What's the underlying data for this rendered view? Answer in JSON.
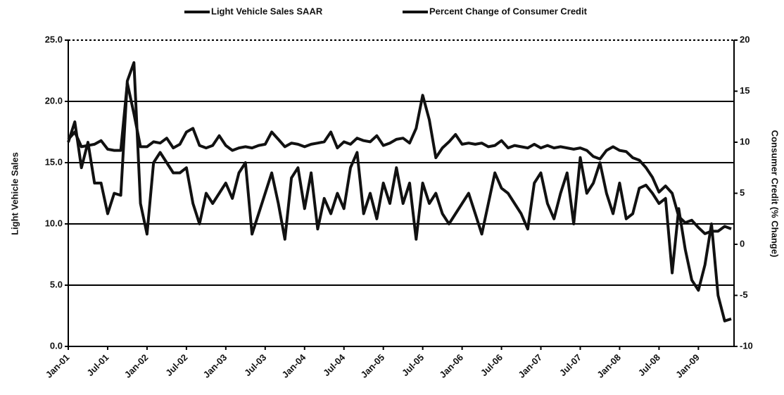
{
  "chart_data": {
    "type": "line",
    "y_label": "Light Vehicle Sales",
    "y2_label": "Consumer Credit (% Change)",
    "categories": [
      "Jan-01",
      null,
      null,
      null,
      null,
      null,
      "Jul-01",
      null,
      null,
      null,
      null,
      null,
      "Jan-02",
      null,
      null,
      null,
      null,
      null,
      "Jul-02",
      null,
      null,
      null,
      null,
      null,
      "Jan-03",
      null,
      null,
      null,
      null,
      null,
      "Jul-03",
      null,
      null,
      null,
      null,
      null,
      "Jan-04",
      null,
      null,
      null,
      null,
      null,
      "Jul-04",
      null,
      null,
      null,
      null,
      null,
      "Jan-05",
      null,
      null,
      null,
      null,
      null,
      "Jul-05",
      null,
      null,
      null,
      null,
      null,
      "Jan-06",
      null,
      null,
      null,
      null,
      null,
      "Jul-06",
      null,
      null,
      null,
      null,
      null,
      "Jan-07",
      null,
      null,
      null,
      null,
      null,
      "Jul-07",
      null,
      null,
      null,
      null,
      null,
      "Jan-08",
      null,
      null,
      null,
      null,
      null,
      "Jul-08",
      null,
      null,
      null,
      null,
      null,
      "Jan-09",
      null,
      null,
      null,
      null,
      null
    ],
    "series": [
      {
        "name": "Light Vehicle Sales SAAR",
        "color": "#111111",
        "values": [
          16.9,
          17.5,
          16.3,
          16.4,
          16.5,
          16.8,
          16.1,
          16.0,
          16.0,
          21.5,
          19.0,
          16.3,
          16.3,
          16.7,
          16.6,
          17.0,
          16.2,
          16.5,
          17.5,
          17.8,
          16.4,
          16.2,
          16.4,
          17.2,
          16.4,
          16.0,
          16.2,
          16.3,
          16.2,
          16.4,
          16.5,
          17.5,
          16.9,
          16.3,
          16.6,
          16.5,
          16.3,
          16.5,
          16.6,
          16.7,
          17.5,
          16.2,
          16.7,
          16.5,
          17.0,
          16.8,
          16.7,
          17.2,
          16.4,
          16.6,
          16.9,
          17.0,
          16.6,
          17.8,
          20.5,
          18.5,
          15.4,
          16.2,
          16.7,
          17.3,
          16.5,
          16.6,
          16.5,
          16.6,
          16.3,
          16.4,
          16.8,
          16.2,
          16.4,
          16.3,
          16.2,
          16.5,
          16.2,
          16.4,
          16.2,
          16.3,
          16.2,
          16.1,
          16.2,
          16.0,
          15.5,
          15.3,
          16.0,
          16.3,
          16.0,
          15.9,
          15.4,
          15.2,
          14.6,
          13.8,
          12.6,
          13.1,
          12.5,
          10.6,
          10.1,
          10.3,
          9.7,
          9.2,
          9.4,
          9.4,
          9.8,
          9.6
        ]
      },
      {
        "name": "Percent Change of Consumer Credit",
        "color": "#111111",
        "axis": "y2",
        "values": [
          10,
          12,
          7.5,
          10,
          6,
          6,
          3,
          5,
          4.8,
          16,
          17.8,
          4,
          1,
          8,
          9,
          8,
          7,
          7,
          7.5,
          4,
          2,
          5,
          4,
          5,
          6,
          4.5,
          7,
          8,
          1,
          3,
          5,
          7,
          4,
          0.5,
          6.5,
          7.5,
          3.5,
          7,
          1.5,
          4.5,
          3,
          5,
          3.5,
          7.5,
          9,
          3,
          5,
          2.5,
          6,
          4,
          7.5,
          4,
          6,
          0.5,
          6,
          4,
          5,
          3,
          2,
          3,
          4,
          5,
          3,
          1,
          4,
          7,
          5.5,
          5,
          4,
          3,
          1.5,
          6,
          7,
          4,
          2.5,
          5,
          7,
          2,
          8.5,
          5,
          6,
          8,
          5,
          3,
          6,
          2.5,
          3,
          5.5,
          5.8,
          5,
          4,
          4.5,
          -2.8,
          3.5,
          -0.5,
          -3.5,
          -4.5,
          -2,
          2,
          -5,
          -7.5,
          -7.3
        ]
      }
    ],
    "ylim": [
      0,
      25
    ],
    "yticks": [
      {
        "value": 0,
        "label": "0.0"
      },
      {
        "value": 5,
        "label": "5.0"
      },
      {
        "value": 10,
        "label": "10.0"
      },
      {
        "value": 15,
        "label": "15.0"
      },
      {
        "value": 20,
        "label": "20.0"
      },
      {
        "value": 25,
        "label": "25.0"
      }
    ],
    "y2lim": [
      -10,
      20
    ],
    "y2ticks": [
      -10,
      -5,
      0,
      5,
      10,
      15,
      20
    ],
    "grid": true,
    "legend": "top"
  }
}
